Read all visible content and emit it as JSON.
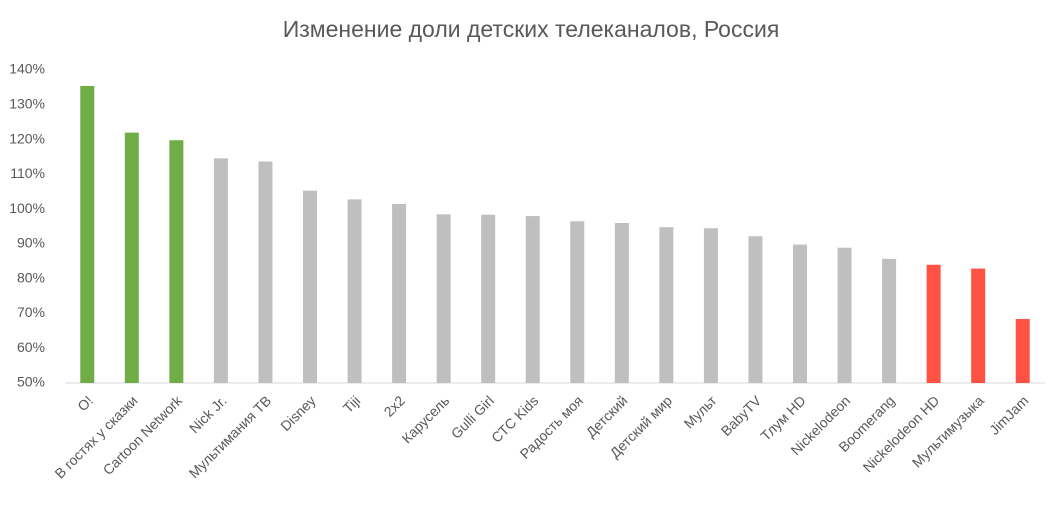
{
  "chart_data": {
    "type": "bar",
    "title": "Изменение доли детских телеканалов, Россия",
    "categories": [
      "O!",
      "В гостях у сказки",
      "Cartoon Network",
      "Nick Jr.",
      "Мультимания ТВ",
      "Disney",
      "Tiji",
      "2x2",
      "Карусель",
      "Gulli Girl",
      "СТС Kids",
      "Радость моя",
      "Детский",
      "Детский мир",
      "Мульт",
      "BabyTV",
      "Тлум HD",
      "Nickelodeon",
      "Boomerang",
      "Nickelodeon HD",
      "Мультимузыка",
      "JimJam"
    ],
    "values": [
      135.4,
      122,
      119.8,
      114.6,
      113.7,
      105.3,
      102.8,
      101.5,
      98.5,
      98.4,
      98,
      96.5,
      96,
      94.8,
      94.5,
      92.2,
      89.8,
      88.9,
      85.7,
      84,
      82.9,
      68.4
    ],
    "colors": [
      "#70ad47",
      "#70ad47",
      "#70ad47",
      "#bfbfbf",
      "#bfbfbf",
      "#bfbfbf",
      "#bfbfbf",
      "#bfbfbf",
      "#bfbfbf",
      "#bfbfbf",
      "#bfbfbf",
      "#bfbfbf",
      "#bfbfbf",
      "#bfbfbf",
      "#bfbfbf",
      "#bfbfbf",
      "#bfbfbf",
      "#bfbfbf",
      "#bfbfbf",
      "#ff5242",
      "#ff5242",
      "#ff5242"
    ],
    "ylim": [
      50,
      140
    ],
    "yticks": [
      {
        "value": 50,
        "label": "50%"
      },
      {
        "value": 60,
        "label": "60%"
      },
      {
        "value": 70,
        "label": "70%"
      },
      {
        "value": 80,
        "label": "80%"
      },
      {
        "value": 90,
        "label": "90%"
      },
      {
        "value": 100,
        "label": "100%"
      },
      {
        "value": 110,
        "label": "110%"
      },
      {
        "value": 120,
        "label": "120%"
      },
      {
        "value": 130,
        "label": "130%"
      },
      {
        "value": 140,
        "label": "140%"
      }
    ],
    "grid": false
  }
}
